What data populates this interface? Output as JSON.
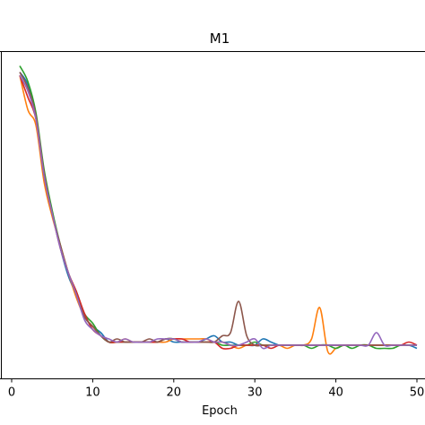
{
  "chart_data": {
    "type": "line",
    "title": "M1",
    "xlabel": "Epoch",
    "ylabel": "",
    "xlim": [
      -1.5,
      50.5
    ],
    "ylim": [
      0,
      1
    ],
    "x_ticks": [
      0,
      10,
      20,
      30,
      40,
      50
    ],
    "x_tick_labels": [
      "0",
      "10",
      "20",
      "30",
      "40",
      "50"
    ],
    "grid": false,
    "legend": "none",
    "series": [
      {
        "color": "#1f77b4",
        "points": [
          [
            1,
            0.97
          ],
          [
            2,
            0.93
          ],
          [
            3,
            0.83
          ],
          [
            4,
            0.65
          ],
          [
            5,
            0.52
          ],
          [
            6,
            0.41
          ],
          [
            7,
            0.32
          ],
          [
            8,
            0.26
          ],
          [
            9,
            0.19
          ],
          [
            10,
            0.16
          ],
          [
            11,
            0.14
          ],
          [
            12,
            0.11
          ],
          [
            13,
            0.11
          ],
          [
            14,
            0.11
          ],
          [
            15,
            0.11
          ],
          [
            16,
            0.11
          ],
          [
            17,
            0.11
          ],
          [
            18,
            0.11
          ],
          [
            19,
            0.12
          ],
          [
            20,
            0.11
          ],
          [
            21,
            0.11
          ],
          [
            22,
            0.11
          ],
          [
            23,
            0.11
          ],
          [
            24,
            0.12
          ],
          [
            25,
            0.13
          ],
          [
            26,
            0.11
          ],
          [
            27,
            0.11
          ],
          [
            28,
            0.1
          ],
          [
            29,
            0.1
          ],
          [
            30,
            0.1
          ],
          [
            31,
            0.12
          ],
          [
            32,
            0.11
          ],
          [
            33,
            0.1
          ],
          [
            34,
            0.1
          ],
          [
            35,
            0.1
          ],
          [
            36,
            0.1
          ],
          [
            37,
            0.1
          ],
          [
            38,
            0.1
          ],
          [
            39,
            0.1
          ],
          [
            40,
            0.1
          ],
          [
            41,
            0.1
          ],
          [
            42,
            0.1
          ],
          [
            43,
            0.1
          ],
          [
            44,
            0.1
          ],
          [
            45,
            0.1
          ],
          [
            46,
            0.1
          ],
          [
            47,
            0.1
          ],
          [
            48,
            0.1
          ],
          [
            49,
            0.1
          ],
          [
            50,
            0.09
          ]
        ]
      },
      {
        "color": "#ff7f0e",
        "points": [
          [
            1,
            0.96
          ],
          [
            2,
            0.85
          ],
          [
            3,
            0.8
          ],
          [
            4,
            0.62
          ],
          [
            5,
            0.51
          ],
          [
            6,
            0.42
          ],
          [
            7,
            0.33
          ],
          [
            8,
            0.25
          ],
          [
            9,
            0.19
          ],
          [
            10,
            0.16
          ],
          [
            11,
            0.13
          ],
          [
            12,
            0.11
          ],
          [
            13,
            0.11
          ],
          [
            14,
            0.12
          ],
          [
            15,
            0.11
          ],
          [
            16,
            0.11
          ],
          [
            17,
            0.11
          ],
          [
            18,
            0.11
          ],
          [
            19,
            0.11
          ],
          [
            20,
            0.12
          ],
          [
            21,
            0.12
          ],
          [
            22,
            0.12
          ],
          [
            23,
            0.12
          ],
          [
            24,
            0.12
          ],
          [
            25,
            0.11
          ],
          [
            26,
            0.11
          ],
          [
            27,
            0.1
          ],
          [
            28,
            0.09
          ],
          [
            29,
            0.1
          ],
          [
            30,
            0.1
          ],
          [
            31,
            0.1
          ],
          [
            32,
            0.1
          ],
          [
            33,
            0.1
          ],
          [
            34,
            0.09
          ],
          [
            35,
            0.1
          ],
          [
            36,
            0.1
          ],
          [
            37,
            0.12
          ],
          [
            38,
            0.22
          ],
          [
            39,
            0.08
          ],
          [
            40,
            0.09
          ],
          [
            41,
            0.1
          ],
          [
            42,
            0.1
          ],
          [
            43,
            0.1
          ],
          [
            44,
            0.1
          ],
          [
            45,
            0.1
          ],
          [
            46,
            0.1
          ],
          [
            47,
            0.1
          ],
          [
            48,
            0.1
          ],
          [
            49,
            0.1
          ],
          [
            50,
            0.1
          ]
        ]
      },
      {
        "color": "#2ca02c",
        "points": [
          [
            1,
            0.99
          ],
          [
            2,
            0.94
          ],
          [
            3,
            0.84
          ],
          [
            4,
            0.66
          ],
          [
            5,
            0.53
          ],
          [
            6,
            0.42
          ],
          [
            7,
            0.33
          ],
          [
            8,
            0.27
          ],
          [
            9,
            0.2
          ],
          [
            10,
            0.17
          ],
          [
            11,
            0.13
          ],
          [
            12,
            0.11
          ],
          [
            13,
            0.11
          ],
          [
            14,
            0.11
          ],
          [
            15,
            0.11
          ],
          [
            16,
            0.11
          ],
          [
            17,
            0.11
          ],
          [
            18,
            0.11
          ],
          [
            19,
            0.12
          ],
          [
            20,
            0.12
          ],
          [
            21,
            0.11
          ],
          [
            22,
            0.11
          ],
          [
            23,
            0.11
          ],
          [
            24,
            0.11
          ],
          [
            25,
            0.11
          ],
          [
            26,
            0.1
          ],
          [
            27,
            0.1
          ],
          [
            28,
            0.1
          ],
          [
            29,
            0.1
          ],
          [
            30,
            0.11
          ],
          [
            31,
            0.1
          ],
          [
            32,
            0.1
          ],
          [
            33,
            0.1
          ],
          [
            34,
            0.1
          ],
          [
            35,
            0.1
          ],
          [
            36,
            0.1
          ],
          [
            37,
            0.09
          ],
          [
            38,
            0.1
          ],
          [
            39,
            0.1
          ],
          [
            40,
            0.09
          ],
          [
            41,
            0.1
          ],
          [
            42,
            0.09
          ],
          [
            43,
            0.1
          ],
          [
            44,
            0.1
          ],
          [
            45,
            0.09
          ],
          [
            46,
            0.09
          ],
          [
            47,
            0.09
          ],
          [
            48,
            0.1
          ],
          [
            49,
            0.1
          ],
          [
            50,
            0.1
          ]
        ]
      },
      {
        "color": "#d62728",
        "points": [
          [
            1,
            0.96
          ],
          [
            2,
            0.89
          ],
          [
            3,
            0.82
          ],
          [
            4,
            0.64
          ],
          [
            5,
            0.52
          ],
          [
            6,
            0.41
          ],
          [
            7,
            0.33
          ],
          [
            8,
            0.27
          ],
          [
            9,
            0.2
          ],
          [
            10,
            0.15
          ],
          [
            11,
            0.13
          ],
          [
            12,
            0.11
          ],
          [
            13,
            0.11
          ],
          [
            14,
            0.11
          ],
          [
            15,
            0.11
          ],
          [
            16,
            0.11
          ],
          [
            17,
            0.11
          ],
          [
            18,
            0.11
          ],
          [
            19,
            0.12
          ],
          [
            20,
            0.12
          ],
          [
            21,
            0.12
          ],
          [
            22,
            0.11
          ],
          [
            23,
            0.11
          ],
          [
            24,
            0.11
          ],
          [
            25,
            0.11
          ],
          [
            26,
            0.09
          ],
          [
            27,
            0.09
          ],
          [
            28,
            0.1
          ],
          [
            29,
            0.1
          ],
          [
            30,
            0.1
          ],
          [
            31,
            0.1
          ],
          [
            32,
            0.09
          ],
          [
            33,
            0.1
          ],
          [
            34,
            0.1
          ],
          [
            35,
            0.1
          ],
          [
            36,
            0.1
          ],
          [
            37,
            0.1
          ],
          [
            38,
            0.1
          ],
          [
            39,
            0.1
          ],
          [
            40,
            0.1
          ],
          [
            41,
            0.1
          ],
          [
            42,
            0.1
          ],
          [
            43,
            0.1
          ],
          [
            44,
            0.1
          ],
          [
            45,
            0.1
          ],
          [
            46,
            0.1
          ],
          [
            47,
            0.1
          ],
          [
            48,
            0.1
          ],
          [
            49,
            0.11
          ],
          [
            50,
            0.1
          ]
        ]
      },
      {
        "color": "#8c564b",
        "points": [
          [
            1,
            0.97
          ],
          [
            2,
            0.92
          ],
          [
            3,
            0.83
          ],
          [
            4,
            0.65
          ],
          [
            5,
            0.52
          ],
          [
            6,
            0.42
          ],
          [
            7,
            0.33
          ],
          [
            8,
            0.26
          ],
          [
            9,
            0.19
          ],
          [
            10,
            0.16
          ],
          [
            11,
            0.13
          ],
          [
            12,
            0.11
          ],
          [
            13,
            0.12
          ],
          [
            14,
            0.11
          ],
          [
            15,
            0.11
          ],
          [
            16,
            0.11
          ],
          [
            17,
            0.12
          ],
          [
            18,
            0.11
          ],
          [
            19,
            0.12
          ],
          [
            20,
            0.12
          ],
          [
            21,
            0.11
          ],
          [
            22,
            0.11
          ],
          [
            23,
            0.11
          ],
          [
            24,
            0.11
          ],
          [
            25,
            0.11
          ],
          [
            26,
            0.13
          ],
          [
            27,
            0.14
          ],
          [
            28,
            0.24
          ],
          [
            29,
            0.13
          ],
          [
            30,
            0.1
          ],
          [
            31,
            0.1
          ],
          [
            32,
            0.1
          ],
          [
            33,
            0.1
          ],
          [
            34,
            0.1
          ],
          [
            35,
            0.1
          ],
          [
            36,
            0.1
          ],
          [
            37,
            0.1
          ],
          [
            38,
            0.1
          ],
          [
            39,
            0.1
          ],
          [
            40,
            0.1
          ],
          [
            41,
            0.1
          ],
          [
            42,
            0.1
          ],
          [
            43,
            0.1
          ],
          [
            44,
            0.1
          ],
          [
            45,
            0.1
          ],
          [
            46,
            0.1
          ],
          [
            47,
            0.1
          ],
          [
            48,
            0.1
          ],
          [
            49,
            0.1
          ],
          [
            50,
            0.1
          ]
        ]
      },
      {
        "color": "#9467bd",
        "points": [
          [
            1,
            0.96
          ],
          [
            2,
            0.91
          ],
          [
            3,
            0.82
          ],
          [
            4,
            0.64
          ],
          [
            5,
            0.52
          ],
          [
            6,
            0.41
          ],
          [
            7,
            0.33
          ],
          [
            8,
            0.26
          ],
          [
            9,
            0.18
          ],
          [
            10,
            0.15
          ],
          [
            11,
            0.13
          ],
          [
            12,
            0.12
          ],
          [
            13,
            0.11
          ],
          [
            14,
            0.12
          ],
          [
            15,
            0.11
          ],
          [
            16,
            0.11
          ],
          [
            17,
            0.11
          ],
          [
            18,
            0.12
          ],
          [
            19,
            0.12
          ],
          [
            20,
            0.12
          ],
          [
            21,
            0.11
          ],
          [
            22,
            0.11
          ],
          [
            23,
            0.11
          ],
          [
            24,
            0.12
          ],
          [
            25,
            0.11
          ],
          [
            26,
            0.11
          ],
          [
            27,
            0.1
          ],
          [
            28,
            0.1
          ],
          [
            29,
            0.11
          ],
          [
            30,
            0.12
          ],
          [
            31,
            0.09
          ],
          [
            32,
            0.1
          ],
          [
            33,
            0.1
          ],
          [
            34,
            0.1
          ],
          [
            35,
            0.1
          ],
          [
            36,
            0.1
          ],
          [
            37,
            0.1
          ],
          [
            38,
            0.1
          ],
          [
            39,
            0.1
          ],
          [
            40,
            0.1
          ],
          [
            41,
            0.1
          ],
          [
            42,
            0.1
          ],
          [
            43,
            0.1
          ],
          [
            44,
            0.1
          ],
          [
            45,
            0.14
          ],
          [
            46,
            0.1
          ],
          [
            47,
            0.1
          ],
          [
            48,
            0.1
          ],
          [
            49,
            0.1
          ],
          [
            50,
            0.1
          ]
        ]
      }
    ]
  }
}
